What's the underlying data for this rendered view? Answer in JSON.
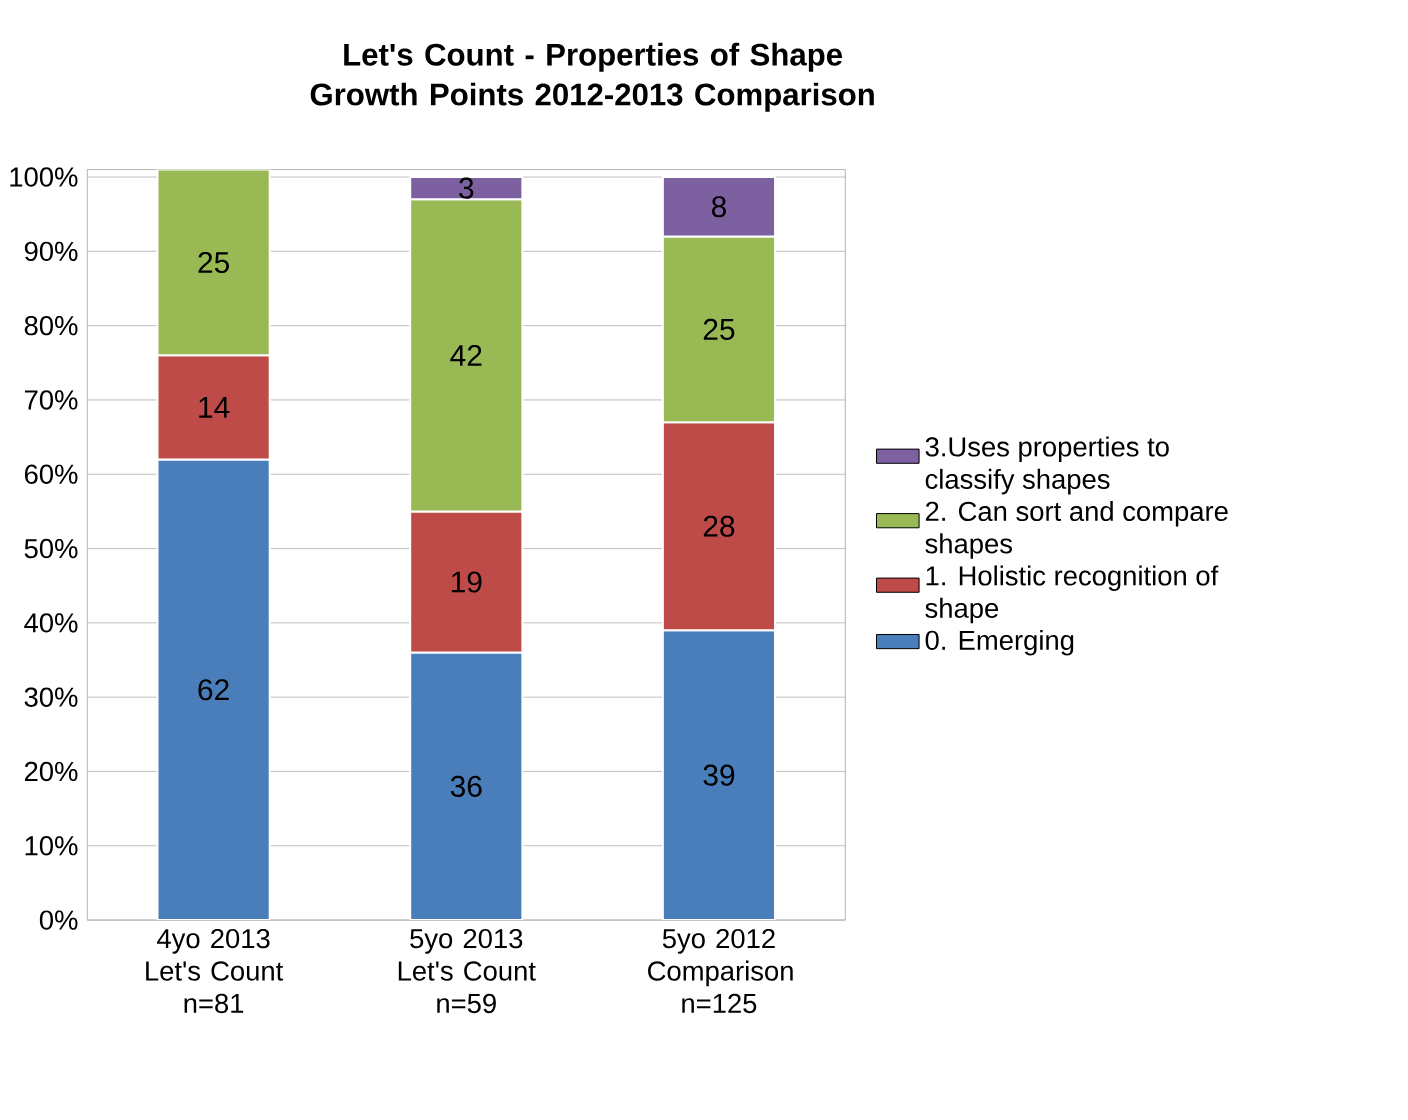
{
  "chart_data": {
    "type": "bar",
    "title": "Let's Count - Properties of Shape Growth Points 2012-2013 Comparison",
    "categories": [
      "4yo 2013 Let's Count n=81",
      "5yo 2013 Let's Count n=59",
      "5yo 2012 Comparison n=125"
    ],
    "stacked": true,
    "series": [
      {
        "name": "0. Emerging",
        "color": "#4a7ebb",
        "values": [
          62,
          36,
          39
        ]
      },
      {
        "name": "1. Holistic recognition of shape",
        "color": "#be4b48",
        "values": [
          14,
          19,
          28
        ]
      },
      {
        "name": "2. Can sort and compare shapes",
        "color": "#98b954",
        "values": [
          25,
          42,
          25
        ]
      },
      {
        "name": "3.Uses properties to classify shapes",
        "color": "#7d60a0",
        "values": [
          null,
          3,
          8
        ]
      }
    ],
    "data_labels": true,
    "ylim": [
      0,
      101
    ],
    "yticks": [
      {
        "value": 0,
        "label": "0%"
      },
      {
        "value": 10,
        "label": "10%"
      },
      {
        "value": 20,
        "label": "20%"
      },
      {
        "value": 30,
        "label": "30%"
      },
      {
        "value": 40,
        "label": "40%"
      },
      {
        "value": 50,
        "label": "50%"
      },
      {
        "value": 60,
        "label": "60%"
      },
      {
        "value": 70,
        "label": "70%"
      },
      {
        "value": 80,
        "label": "80%"
      },
      {
        "value": 90,
        "label": "90%"
      },
      {
        "value": 100,
        "label": "100%"
      }
    ],
    "grid": "y",
    "legend": "right"
  }
}
